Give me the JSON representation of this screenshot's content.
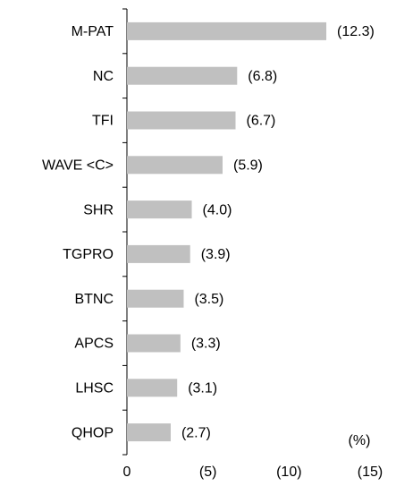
{
  "chart_data": {
    "type": "barh",
    "categories": [
      "M-PAT",
      "NC",
      "TFI",
      "WAVE <C>",
      "SHR",
      "TGPRO",
      "BTNC",
      "APCS",
      "LHSC",
      "QHOP"
    ],
    "values": [
      12.3,
      6.8,
      6.7,
      5.9,
      4.0,
      3.9,
      3.5,
      3.3,
      3.1,
      2.7
    ],
    "value_labels": [
      "(12.3)",
      "(6.8)",
      "(6.7)",
      "(5.9)",
      "(4.0)",
      "(3.9)",
      "(3.5)",
      "(3.3)",
      "(3.1)",
      "(2.7)"
    ],
    "color": "#c0c0c0",
    "xlim": [
      0,
      15
    ],
    "xticks": [
      0,
      {
        "value": 5,
        "label": "(5)"
      },
      {
        "value": 10,
        "label": "(10)"
      },
      {
        "value": 15,
        "label": "(15)"
      }
    ],
    "xlabel": "(%)"
  }
}
